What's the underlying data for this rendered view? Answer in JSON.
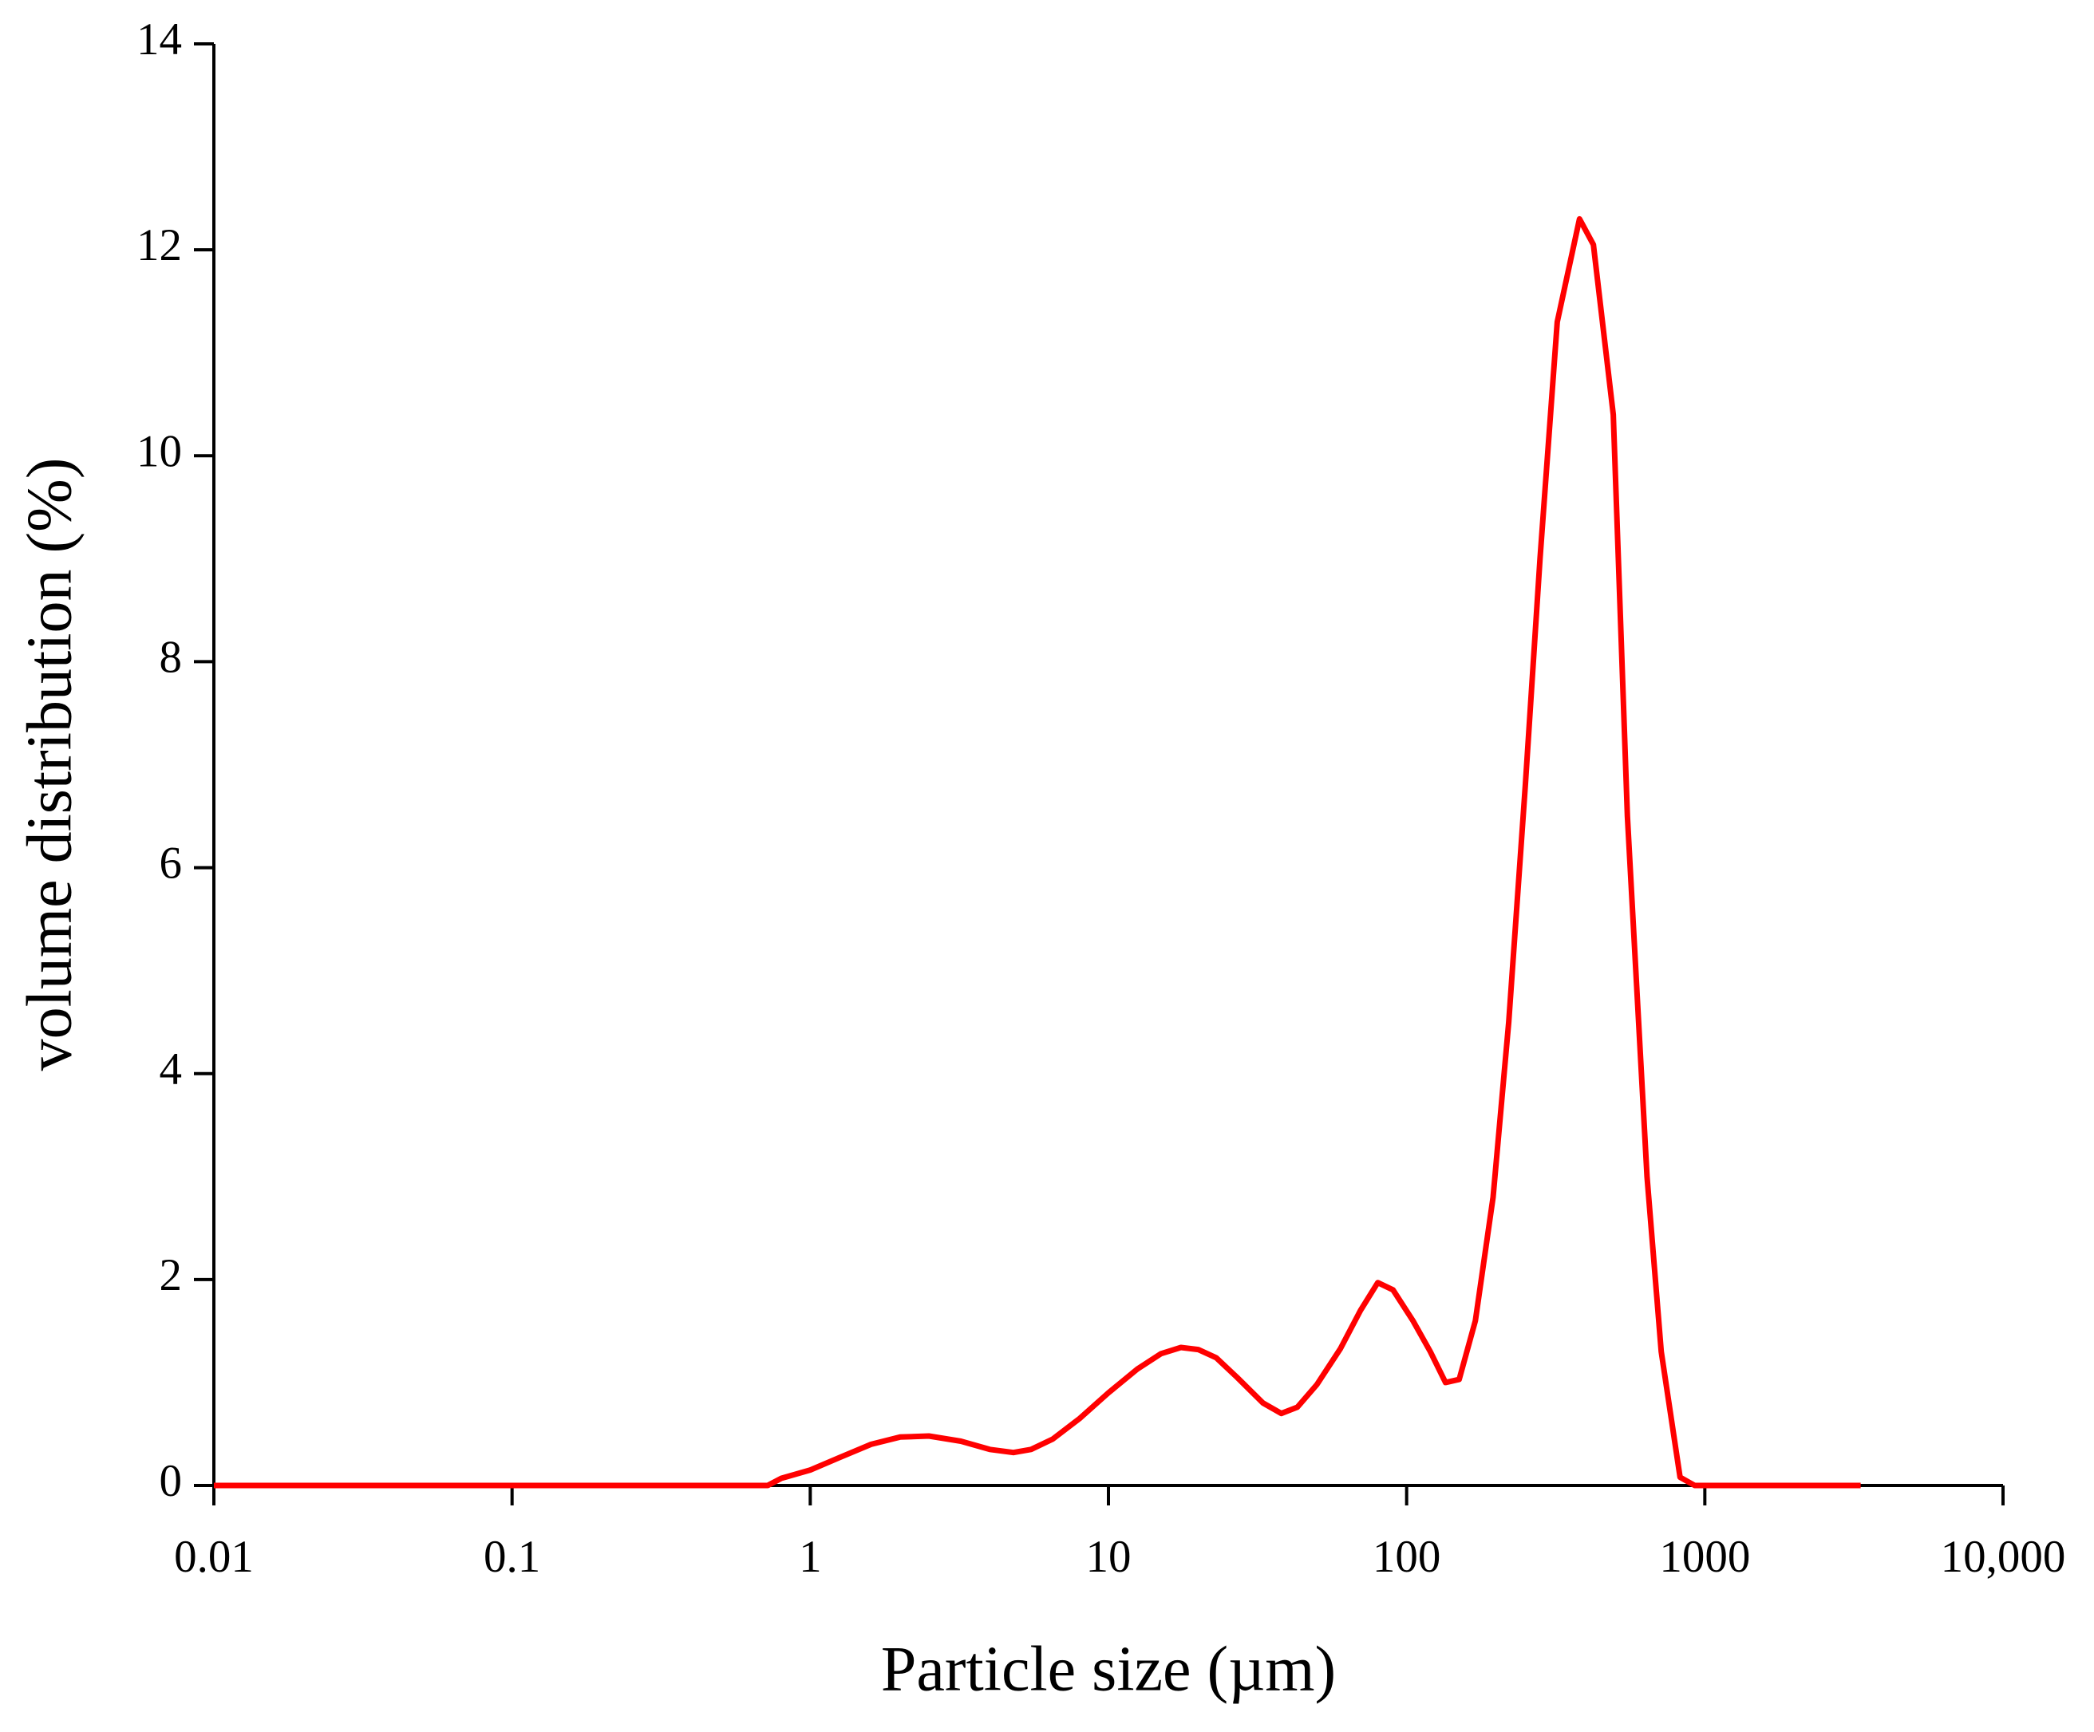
{
  "chart_data": {
    "type": "line",
    "xlabel": "Particle size (µm)",
    "ylabel": "volume distribution (%)",
    "xscale": "log",
    "color": "#ff0000",
    "x": [
      0.01,
      0.72,
      0.8,
      1,
      1.25,
      1.6,
      2,
      2.5,
      3.2,
      4,
      4.8,
      5.5,
      6.5,
      8,
      10,
      12.5,
      15,
      17.5,
      20,
      23,
      27,
      33,
      38,
      43,
      50,
      60,
      70,
      80,
      90,
      105,
      120,
      135,
      150,
      170,
      195,
      220,
      250,
      280,
      320,
      380,
      423,
      493,
      550,
      640,
      714,
      826,
      925,
      3330
    ],
    "values": [
      0,
      0,
      0.07,
      0.15,
      0.27,
      0.4,
      0.47,
      0.48,
      0.43,
      0.35,
      0.32,
      0.35,
      0.45,
      0.65,
      0.9,
      1.13,
      1.28,
      1.34,
      1.32,
      1.24,
      1.05,
      0.8,
      0.7,
      0.76,
      0.98,
      1.33,
      1.7,
      1.97,
      1.9,
      1.6,
      1.3,
      1.0,
      1.03,
      1.6,
      2.8,
      4.5,
      6.8,
      9.0,
      11.3,
      12.3,
      12.05,
      10.4,
      6.5,
      3.0,
      1.3,
      0.08,
      0,
      0
    ],
    "xlim": [
      0.01,
      10000
    ],
    "xticks": [
      0.01,
      0.1,
      1,
      10,
      100,
      1000,
      {
        "value": 10000,
        "label": "10,000"
      }
    ],
    "ylim": [
      0,
      14
    ],
    "yticks": [
      0,
      2,
      4,
      6,
      8,
      10,
      12,
      14
    ]
  }
}
